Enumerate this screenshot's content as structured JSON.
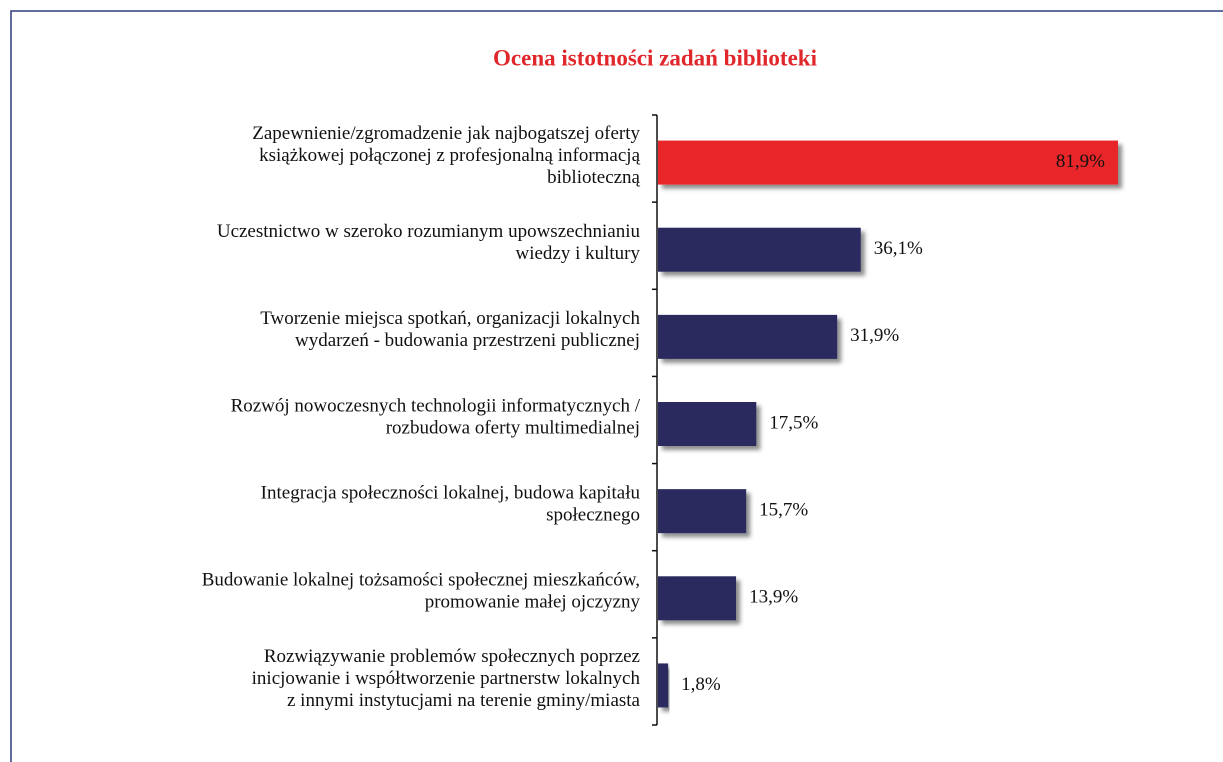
{
  "chart_data": {
    "type": "bar",
    "orientation": "horizontal",
    "title": "Ocena istotności zadań biblioteki",
    "categories": [
      [
        "Zapewnienie/zgromadzenie jak najbogatszej oferty",
        "książkowej połączonej z profesjonalną informacją",
        "biblioteczną"
      ],
      [
        "Uczestnictwo w szeroko rozumianym upowszechnianiu",
        "wiedzy i kultury"
      ],
      [
        "Tworzenie miejsca spotkań, organizacji lokalnych",
        "wydarzeń - budowania przestrzeni publicznej"
      ],
      [
        "Rozwój nowoczesnych technologii informatycznych /",
        "rozbudowa oferty multimedialnej"
      ],
      [
        "Integracja społeczności lokalnej, budowa kapitału",
        "społecznego"
      ],
      [
        "Budowanie lokalnej tożsamości społecznej mieszkańców,",
        "promowanie małej ojczyzny"
      ],
      [
        "Rozwiązywanie problemów społecznych poprzez",
        "inicjowanie i współtworzenie partnerstw lokalnych",
        "z innymi instytucjami na terenie gminy/miasta"
      ]
    ],
    "values": [
      81.9,
      36.1,
      31.9,
      17.5,
      15.7,
      13.9,
      1.8
    ],
    "value_labels": [
      "81,9%",
      "36,1%",
      "31,9%",
      "17,5%",
      "15,7%",
      "13,9%",
      "1,8%"
    ],
    "colors": [
      "#e8262b",
      "#2c2b5f",
      "#2c2b5f",
      "#2c2b5f",
      "#2c2b5f",
      "#2c2b5f",
      "#2c2b5f"
    ],
    "title_color": "#e0282c"
  }
}
